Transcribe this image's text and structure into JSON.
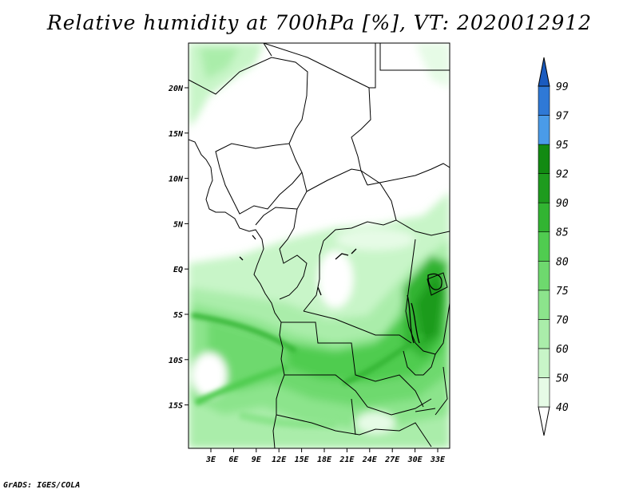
{
  "title": "Relative humidity at 700hPa [%], VT: 2020012912",
  "credit": "GrADS: IGES/COLA",
  "map": {
    "lon_ticks": [
      "3E",
      "6E",
      "9E",
      "12E",
      "15E",
      "18E",
      "21E",
      "24E",
      "27E",
      "30E",
      "33E"
    ],
    "lat_ticks": [
      "20N",
      "15N",
      "10N",
      "5N",
      "EQ",
      "5S",
      "10S",
      "15S"
    ]
  },
  "colorbar": {
    "levels": [
      "40",
      "50",
      "60",
      "70",
      "75",
      "80",
      "85",
      "90",
      "92",
      "95",
      "97",
      "99"
    ],
    "colors": [
      "#ffffff",
      "#e6fbe6",
      "#c8f5c8",
      "#aaedaa",
      "#8ce48c",
      "#6ed96e",
      "#50cc50",
      "#32b432",
      "#1e9b1e",
      "#128a12",
      "#4a9be8",
      "#2f79d6",
      "#1a5bbf"
    ]
  }
}
